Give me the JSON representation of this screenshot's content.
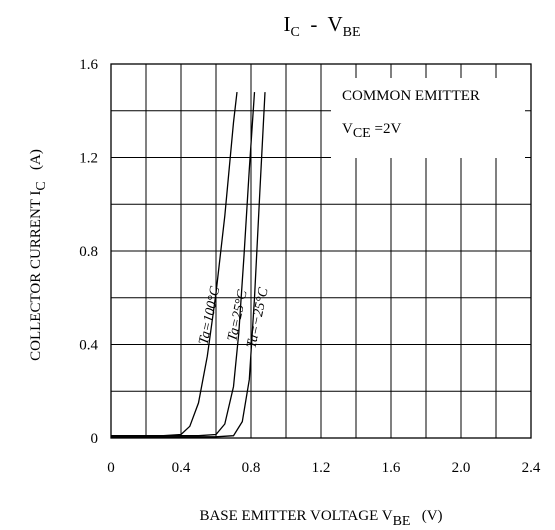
{
  "chart_data": {
    "type": "line",
    "title": {
      "main": "I",
      "sub1": "C",
      "mid": "  -  V",
      "sub2": "BE"
    },
    "xlabel": {
      "main": "BASE EMITTER VOLTAGE V",
      "sub": "BE",
      "unit": "(V)"
    },
    "ylabel": {
      "main": "COLLECTOR CURRENT I",
      "sub": "C",
      "unit": "(A)"
    },
    "xlim": [
      0,
      2.4
    ],
    "ylim": [
      0,
      1.6
    ],
    "x_ticks": [
      "0",
      "0.4",
      "0.8",
      "1.2",
      "1.6",
      "2.0",
      "2.4"
    ],
    "y_ticks": [
      "0",
      "0.4",
      "0.8",
      "1.2",
      "1.6"
    ],
    "grid": true,
    "annotation": {
      "line1": "COMMON EMITTER",
      "line2_main": "V",
      "line2_sub": "CE",
      "line2_rest": " =2V"
    },
    "series": [
      {
        "name": "Ta=100°C",
        "x": [
          0,
          0.3,
          0.4,
          0.45,
          0.5,
          0.55,
          0.6,
          0.65,
          0.7,
          0.72
        ],
        "y": [
          0.01,
          0.01,
          0.015,
          0.05,
          0.15,
          0.35,
          0.62,
          0.95,
          1.35,
          1.48
        ]
      },
      {
        "name": "Ta=25°C",
        "x": [
          0,
          0.5,
          0.6,
          0.65,
          0.7,
          0.73,
          0.76,
          0.79,
          0.82
        ],
        "y": [
          0.01,
          0.01,
          0.015,
          0.06,
          0.22,
          0.45,
          0.78,
          1.15,
          1.48
        ]
      },
      {
        "name": "Ta=−25°C",
        "x": [
          0,
          0.6,
          0.7,
          0.75,
          0.79,
          0.82,
          0.85,
          0.88
        ],
        "y": [
          0.005,
          0.005,
          0.01,
          0.07,
          0.25,
          0.6,
          1.05,
          1.48
        ]
      }
    ]
  }
}
